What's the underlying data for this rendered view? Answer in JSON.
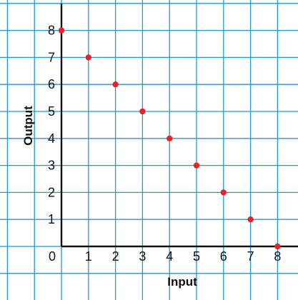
{
  "chart_data": {
    "type": "scatter",
    "xlabel": "Input",
    "ylabel": "Output",
    "x": [
      0,
      1,
      2,
      3,
      4,
      5,
      6,
      7,
      8
    ],
    "y": [
      8,
      7,
      6,
      5,
      4,
      3,
      2,
      1,
      0
    ],
    "xlim": [
      0,
      8
    ],
    "ylim": [
      0,
      8
    ],
    "x_ticks": [
      "1",
      "2",
      "3",
      "4",
      "5",
      "6",
      "7",
      "8"
    ],
    "y_ticks": [
      "1",
      "2",
      "3",
      "4",
      "5",
      "6",
      "7",
      "8"
    ],
    "origin_label": "0",
    "grid": true,
    "colors": {
      "grid": "#1f9ad6",
      "point": "#e8222a",
      "axis": "#111111",
      "background": "#ffffff"
    }
  }
}
